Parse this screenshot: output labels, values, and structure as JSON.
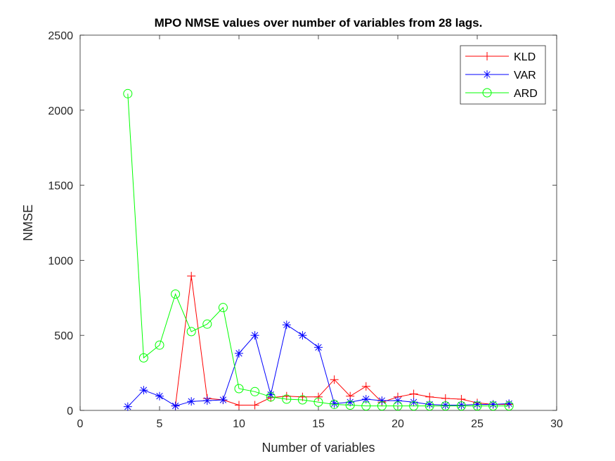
{
  "chart_data": {
    "type": "line",
    "title": "MPO NMSE values over number of variables from 28 lags.",
    "xlabel": "Number of variables",
    "ylabel": "NMSE",
    "xlim": [
      0,
      30
    ],
    "ylim": [
      0,
      2500
    ],
    "xticks": [
      0,
      5,
      10,
      15,
      20,
      25,
      30
    ],
    "yticks": [
      0,
      500,
      1000,
      1500,
      2000,
      2500
    ],
    "grid": false,
    "legend_position": "top-right",
    "x": [
      3,
      4,
      5,
      6,
      7,
      8,
      9,
      10,
      11,
      12,
      13,
      14,
      15,
      16,
      17,
      18,
      19,
      20,
      21,
      22,
      23,
      24,
      25,
      26,
      27
    ],
    "series": [
      {
        "name": "KLD",
        "color": "#ff0000",
        "marker": "plus",
        "values": [
          null,
          null,
          null,
          30,
          895,
          80,
          70,
          35,
          35,
          85,
          95,
          90,
          90,
          205,
          95,
          160,
          55,
          90,
          110,
          90,
          80,
          75,
          50,
          40,
          40
        ]
      },
      {
        "name": "VAR",
        "color": "#0000ff",
        "marker": "asterisk",
        "values": [
          25,
          135,
          95,
          30,
          60,
          65,
          70,
          380,
          500,
          105,
          570,
          500,
          420,
          45,
          55,
          75,
          65,
          65,
          55,
          40,
          35,
          35,
          40,
          40,
          45
        ]
      },
      {
        "name": "ARD",
        "color": "#00ff00",
        "marker": "circle",
        "values": [
          2110,
          350,
          435,
          775,
          525,
          575,
          685,
          145,
          125,
          90,
          75,
          70,
          55,
          40,
          35,
          30,
          30,
          30,
          30,
          30,
          30,
          30,
          30,
          30,
          30
        ]
      }
    ]
  }
}
